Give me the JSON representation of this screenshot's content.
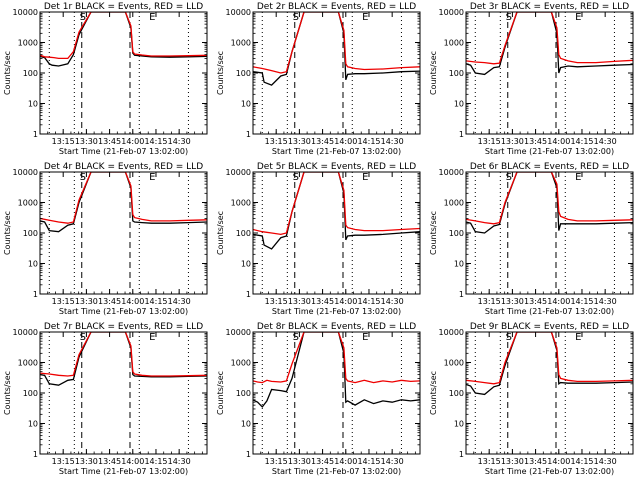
{
  "colors": {
    "events": "#000000",
    "lld": "#ee0000",
    "axes": "#000000"
  },
  "chart_data": [
    {
      "type": "line",
      "title": "Det 1r BLACK = Events, RED = LLD",
      "xlabel": "Start Time (21-Feb-07 13:02:00)",
      "ylabel": "Counts/sec",
      "x_ticks": [
        "13:15",
        "13:30",
        "13:45",
        "14:00",
        "14:15",
        "14:30"
      ],
      "y_scale": "log",
      "ylim": [
        1,
        10000
      ],
      "y_ticks": [
        "1",
        "10",
        "100",
        "1000",
        "10000"
      ],
      "markers": [
        "S",
        "E"
      ],
      "series": [
        {
          "name": "Events",
          "x": [
            13.0,
            13.05,
            13.1,
            13.13,
            13.2,
            13.3,
            13.36,
            13.42,
            13.55,
            13.65,
            13.8,
            13.92,
            13.98,
            14.0,
            14.02,
            14.1,
            14.2,
            14.4,
            14.6,
            14.8
          ],
          "y": [
            350,
            320,
            200,
            180,
            170,
            200,
            400,
            1800,
            10000,
            10000,
            10000,
            10000,
            3000,
            450,
            380,
            360,
            340,
            330,
            340,
            350
          ]
        },
        {
          "name": "LLD",
          "x": [
            13.0,
            13.05,
            13.1,
            13.15,
            13.2,
            13.3,
            13.36,
            13.42,
            13.55,
            13.65,
            13.8,
            13.92,
            13.98,
            14.0,
            14.02,
            14.1,
            14.2,
            14.4,
            14.6,
            14.8
          ],
          "y": [
            380,
            340,
            330,
            320,
            300,
            300,
            500,
            2200,
            10000,
            10000,
            10000,
            10000,
            3500,
            500,
            420,
            390,
            360,
            360,
            370,
            380
          ]
        }
      ]
    },
    {
      "type": "line",
      "title": "Det 2r BLACK = Events, RED = LLD",
      "xlabel": "Start Time (21-Feb-07 13:02:00)",
      "ylabel": "Counts/sec",
      "x_ticks": [
        "13:15",
        "13:30",
        "13:45",
        "14:00",
        "14:15",
        "14:30"
      ],
      "y_scale": "log",
      "ylim": [
        1,
        10000
      ],
      "y_ticks": [
        "1",
        "10",
        "100",
        "1000",
        "10000"
      ],
      "markers": [
        "S",
        "E"
      ],
      "series": [
        {
          "name": "Events",
          "x": [
            13.0,
            13.1,
            13.12,
            13.2,
            13.3,
            13.36,
            13.42,
            13.55,
            13.65,
            13.8,
            13.92,
            13.98,
            14.0,
            14.02,
            14.1,
            14.2,
            14.4,
            14.6,
            14.8
          ],
          "y": [
            110,
            100,
            50,
            40,
            80,
            90,
            500,
            10000,
            10000,
            10000,
            10000,
            2000,
            60,
            90,
            95,
            95,
            100,
            110,
            115
          ]
        },
        {
          "name": "LLD",
          "x": [
            13.0,
            13.1,
            13.2,
            13.3,
            13.36,
            13.42,
            13.55,
            13.65,
            13.8,
            13.92,
            13.98,
            14.0,
            14.02,
            14.1,
            14.2,
            14.4,
            14.6,
            14.8
          ],
          "y": [
            160,
            140,
            120,
            100,
            110,
            500,
            10000,
            10000,
            10000,
            10000,
            2500,
            200,
            160,
            140,
            130,
            135,
            150,
            160
          ]
        }
      ]
    },
    {
      "type": "line",
      "title": "Det 3r BLACK = Events, RED = LLD",
      "xlabel": "Start Time (21-Feb-07 13:02:00)",
      "ylabel": "Counts/sec",
      "x_ticks": [
        "13:15",
        "13:30",
        "13:45",
        "14:00",
        "14:15",
        "14:30"
      ],
      "y_scale": "log",
      "ylim": [
        1,
        10000
      ],
      "y_ticks": [
        "1",
        "10",
        "100",
        "1000",
        "10000"
      ],
      "markers": [
        "S",
        "E"
      ],
      "series": [
        {
          "name": "Events",
          "x": [
            13.0,
            13.05,
            13.1,
            13.2,
            13.3,
            13.36,
            13.42,
            13.55,
            13.65,
            13.8,
            13.92,
            13.98,
            14.0,
            14.02,
            14.1,
            14.2,
            14.4,
            14.6,
            14.8
          ],
          "y": [
            200,
            180,
            100,
            90,
            150,
            160,
            700,
            10000,
            10000,
            10000,
            10000,
            2000,
            100,
            150,
            170,
            160,
            170,
            180,
            190
          ]
        },
        {
          "name": "LLD",
          "x": [
            13.0,
            13.1,
            13.2,
            13.3,
            13.36,
            13.42,
            13.55,
            13.65,
            13.8,
            13.92,
            13.98,
            14.0,
            14.02,
            14.1,
            14.2,
            14.4,
            14.6,
            14.8
          ],
          "y": [
            250,
            230,
            220,
            200,
            210,
            800,
            10000,
            10000,
            10000,
            10000,
            3000,
            400,
            300,
            250,
            220,
            220,
            240,
            260
          ]
        }
      ]
    },
    {
      "type": "line",
      "title": "Det 4r BLACK = Events, RED = LLD",
      "xlabel": "Start Time (21-Feb-07 13:02:00)",
      "ylabel": "Counts/sec",
      "x_ticks": [
        "13:15",
        "13:30",
        "13:45",
        "14:00",
        "14:15",
        "14:30"
      ],
      "y_scale": "log",
      "ylim": [
        1,
        10000
      ],
      "y_ticks": [
        "1",
        "10",
        "100",
        "1000",
        "10000"
      ],
      "markers": [
        "S",
        "E"
      ],
      "series": [
        {
          "name": "Events",
          "x": [
            13.0,
            13.05,
            13.1,
            13.2,
            13.3,
            13.36,
            13.42,
            13.55,
            13.65,
            13.8,
            13.92,
            13.98,
            14.0,
            14.02,
            14.1,
            14.2,
            14.4,
            14.6,
            14.8
          ],
          "y": [
            250,
            230,
            120,
            110,
            180,
            200,
            1000,
            10000,
            10000,
            10000,
            10000,
            3000,
            250,
            230,
            220,
            210,
            210,
            220,
            230
          ]
        },
        {
          "name": "LLD",
          "x": [
            13.0,
            13.1,
            13.2,
            13.3,
            13.36,
            13.42,
            13.55,
            13.65,
            13.8,
            13.92,
            13.98,
            14.0,
            14.02,
            14.1,
            14.2,
            14.4,
            14.6,
            14.8
          ],
          "y": [
            300,
            260,
            230,
            210,
            230,
            1200,
            10000,
            10000,
            10000,
            10000,
            3500,
            400,
            320,
            280,
            250,
            250,
            260,
            270
          ]
        }
      ]
    },
    {
      "type": "line",
      "title": "Det 5r BLACK = Events, RED = LLD",
      "xlabel": "Start Time (21-Feb-07 13:02:00)",
      "ylabel": "Counts/sec",
      "x_ticks": [
        "13:15",
        "13:30",
        "13:45",
        "14:00",
        "14:15",
        "14:30"
      ],
      "y_scale": "log",
      "ylim": [
        1,
        10000
      ],
      "y_ticks": [
        "1",
        "10",
        "100",
        "1000",
        "10000"
      ],
      "markers": [
        "S",
        "E"
      ],
      "series": [
        {
          "name": "Events",
          "x": [
            13.0,
            13.1,
            13.12,
            13.2,
            13.3,
            13.36,
            13.42,
            13.55,
            13.65,
            13.8,
            13.92,
            13.98,
            14.0,
            14.02,
            14.1,
            14.2,
            14.4,
            14.6,
            14.8
          ],
          "y": [
            90,
            80,
            40,
            30,
            70,
            80,
            500,
            10000,
            10000,
            10000,
            10000,
            2000,
            60,
            80,
            85,
            85,
            90,
            100,
            110
          ]
        },
        {
          "name": "LLD",
          "x": [
            13.0,
            13.1,
            13.2,
            13.3,
            13.36,
            13.42,
            13.55,
            13.65,
            13.8,
            13.92,
            13.98,
            14.0,
            14.02,
            14.1,
            14.2,
            14.4,
            14.6,
            14.8
          ],
          "y": [
            130,
            110,
            100,
            90,
            100,
            500,
            10000,
            10000,
            10000,
            10000,
            2500,
            180,
            150,
            130,
            120,
            120,
            130,
            140
          ]
        }
      ]
    },
    {
      "type": "line",
      "title": "Det 6r BLACK = Events, RED = LLD",
      "xlabel": "Start Time (21-Feb-07 13:02:00)",
      "ylabel": "Counts/sec",
      "x_ticks": [
        "13:15",
        "13:30",
        "13:45",
        "14:00",
        "14:15",
        "14:30"
      ],
      "y_scale": "log",
      "ylim": [
        1,
        10000
      ],
      "y_ticks": [
        "1",
        "10",
        "100",
        "1000",
        "10000"
      ],
      "markers": [
        "S",
        "E"
      ],
      "series": [
        {
          "name": "Events",
          "x": [
            13.0,
            13.05,
            13.1,
            13.2,
            13.3,
            13.36,
            13.42,
            13.55,
            13.65,
            13.8,
            13.92,
            13.98,
            14.0,
            14.02,
            14.1,
            14.2,
            14.4,
            14.6,
            14.8
          ],
          "y": [
            230,
            210,
            110,
            100,
            170,
            190,
            900,
            10000,
            10000,
            10000,
            10000,
            3000,
            120,
            200,
            200,
            200,
            200,
            210,
            220
          ]
        },
        {
          "name": "LLD",
          "x": [
            13.0,
            13.1,
            13.2,
            13.3,
            13.36,
            13.42,
            13.55,
            13.65,
            13.8,
            13.92,
            13.98,
            14.0,
            14.02,
            14.1,
            14.2,
            14.4,
            14.6,
            14.8
          ],
          "y": [
            280,
            250,
            220,
            200,
            220,
            1000,
            10000,
            10000,
            10000,
            10000,
            4000,
            500,
            350,
            280,
            250,
            250,
            260,
            270
          ]
        }
      ]
    },
    {
      "type": "line",
      "title": "Det 7r BLACK = Events, RED = LLD",
      "xlabel": "Start Time (21-Feb-07 13:02:00)",
      "ylabel": "Counts/sec",
      "x_ticks": [
        "13:15",
        "13:30",
        "13:45",
        "14:00",
        "14:15",
        "14:30"
      ],
      "y_scale": "log",
      "ylim": [
        1,
        10000
      ],
      "y_ticks": [
        "1",
        "10",
        "100",
        "1000",
        "10000"
      ],
      "markers": [
        "S",
        "E"
      ],
      "series": [
        {
          "name": "Events",
          "x": [
            13.0,
            13.05,
            13.1,
            13.2,
            13.3,
            13.36,
            13.42,
            13.55,
            13.65,
            13.8,
            13.92,
            13.98,
            14.0,
            14.02,
            14.1,
            14.2,
            14.4,
            14.6,
            14.8
          ],
          "y": [
            400,
            380,
            200,
            180,
            260,
            280,
            1500,
            10000,
            10000,
            10000,
            10000,
            3000,
            400,
            360,
            350,
            340,
            340,
            350,
            360
          ]
        },
        {
          "name": "LLD",
          "x": [
            13.0,
            13.1,
            13.2,
            13.3,
            13.36,
            13.42,
            13.55,
            13.65,
            13.8,
            13.92,
            13.98,
            14.0,
            14.02,
            14.1,
            14.2,
            14.4,
            14.6,
            14.8
          ],
          "y": [
            450,
            420,
            380,
            360,
            380,
            1800,
            10000,
            10000,
            10000,
            10000,
            3500,
            500,
            420,
            380,
            360,
            360,
            370,
            380
          ]
        }
      ]
    },
    {
      "type": "line",
      "title": "Det 8r BLACK = Events, RED = LLD",
      "xlabel": "Start Time (21-Feb-07 13:02:00)",
      "ylabel": "Counts/sec",
      "x_ticks": [
        "13:15",
        "13:30",
        "13:45",
        "14:00",
        "14:15",
        "14:30"
      ],
      "y_scale": "log",
      "ylim": [
        1,
        10000
      ],
      "y_ticks": [
        "1",
        "10",
        "100",
        "1000",
        "10000"
      ],
      "markers": [
        "S",
        "E"
      ],
      "series": [
        {
          "name": "Events",
          "x": [
            13.0,
            13.05,
            13.1,
            13.15,
            13.2,
            13.3,
            13.36,
            13.42,
            13.55,
            13.65,
            13.8,
            13.92,
            13.98,
            14.0,
            14.02,
            14.1,
            14.2,
            14.3,
            14.4,
            14.5,
            14.6,
            14.7,
            14.8
          ],
          "y": [
            60,
            50,
            35,
            55,
            130,
            120,
            110,
            300,
            10000,
            10000,
            10000,
            10000,
            2000,
            50,
            55,
            40,
            60,
            45,
            55,
            50,
            60,
            55,
            60
          ]
        },
        {
          "name": "LLD",
          "x": [
            13.0,
            13.05,
            13.1,
            13.15,
            13.2,
            13.3,
            13.36,
            13.42,
            13.55,
            13.65,
            13.8,
            13.92,
            13.98,
            14.0,
            14.02,
            14.1,
            14.2,
            14.3,
            14.4,
            14.5,
            14.6,
            14.7,
            14.8
          ],
          "y": [
            250,
            230,
            220,
            260,
            240,
            230,
            250,
            900,
            10000,
            10000,
            10000,
            10000,
            3000,
            300,
            250,
            220,
            260,
            220,
            250,
            230,
            260,
            240,
            250
          ]
        }
      ]
    },
    {
      "type": "line",
      "title": "Det 9r BLACK = Events, RED = LLD",
      "xlabel": "Start Time (21-Feb-07 13:02:00)",
      "ylabel": "Counts/sec",
      "x_ticks": [
        "13:15",
        "13:30",
        "13:45",
        "14:00",
        "14:15",
        "14:30"
      ],
      "y_scale": "log",
      "ylim": [
        1,
        10000
      ],
      "y_ticks": [
        "1",
        "10",
        "100",
        "1000",
        "10000"
      ],
      "markers": [
        "S",
        "E"
      ],
      "series": [
        {
          "name": "Events",
          "x": [
            13.0,
            13.05,
            13.1,
            13.2,
            13.3,
            13.36,
            13.42,
            13.55,
            13.65,
            13.8,
            13.92,
            13.98,
            14.0,
            14.02,
            14.1,
            14.2,
            14.4,
            14.6,
            14.8
          ],
          "y": [
            190,
            170,
            100,
            90,
            160,
            180,
            800,
            10000,
            10000,
            10000,
            10000,
            2500,
            200,
            220,
            210,
            210,
            210,
            220,
            230
          ]
        },
        {
          "name": "LLD",
          "x": [
            13.0,
            13.1,
            13.2,
            13.3,
            13.36,
            13.42,
            13.55,
            13.65,
            13.8,
            13.92,
            13.98,
            14.0,
            14.02,
            14.1,
            14.2,
            14.4,
            14.6,
            14.8
          ],
          "y": [
            260,
            240,
            220,
            200,
            220,
            1000,
            10000,
            10000,
            10000,
            10000,
            3000,
            400,
            300,
            260,
            240,
            240,
            250,
            260
          ]
        }
      ]
    }
  ]
}
